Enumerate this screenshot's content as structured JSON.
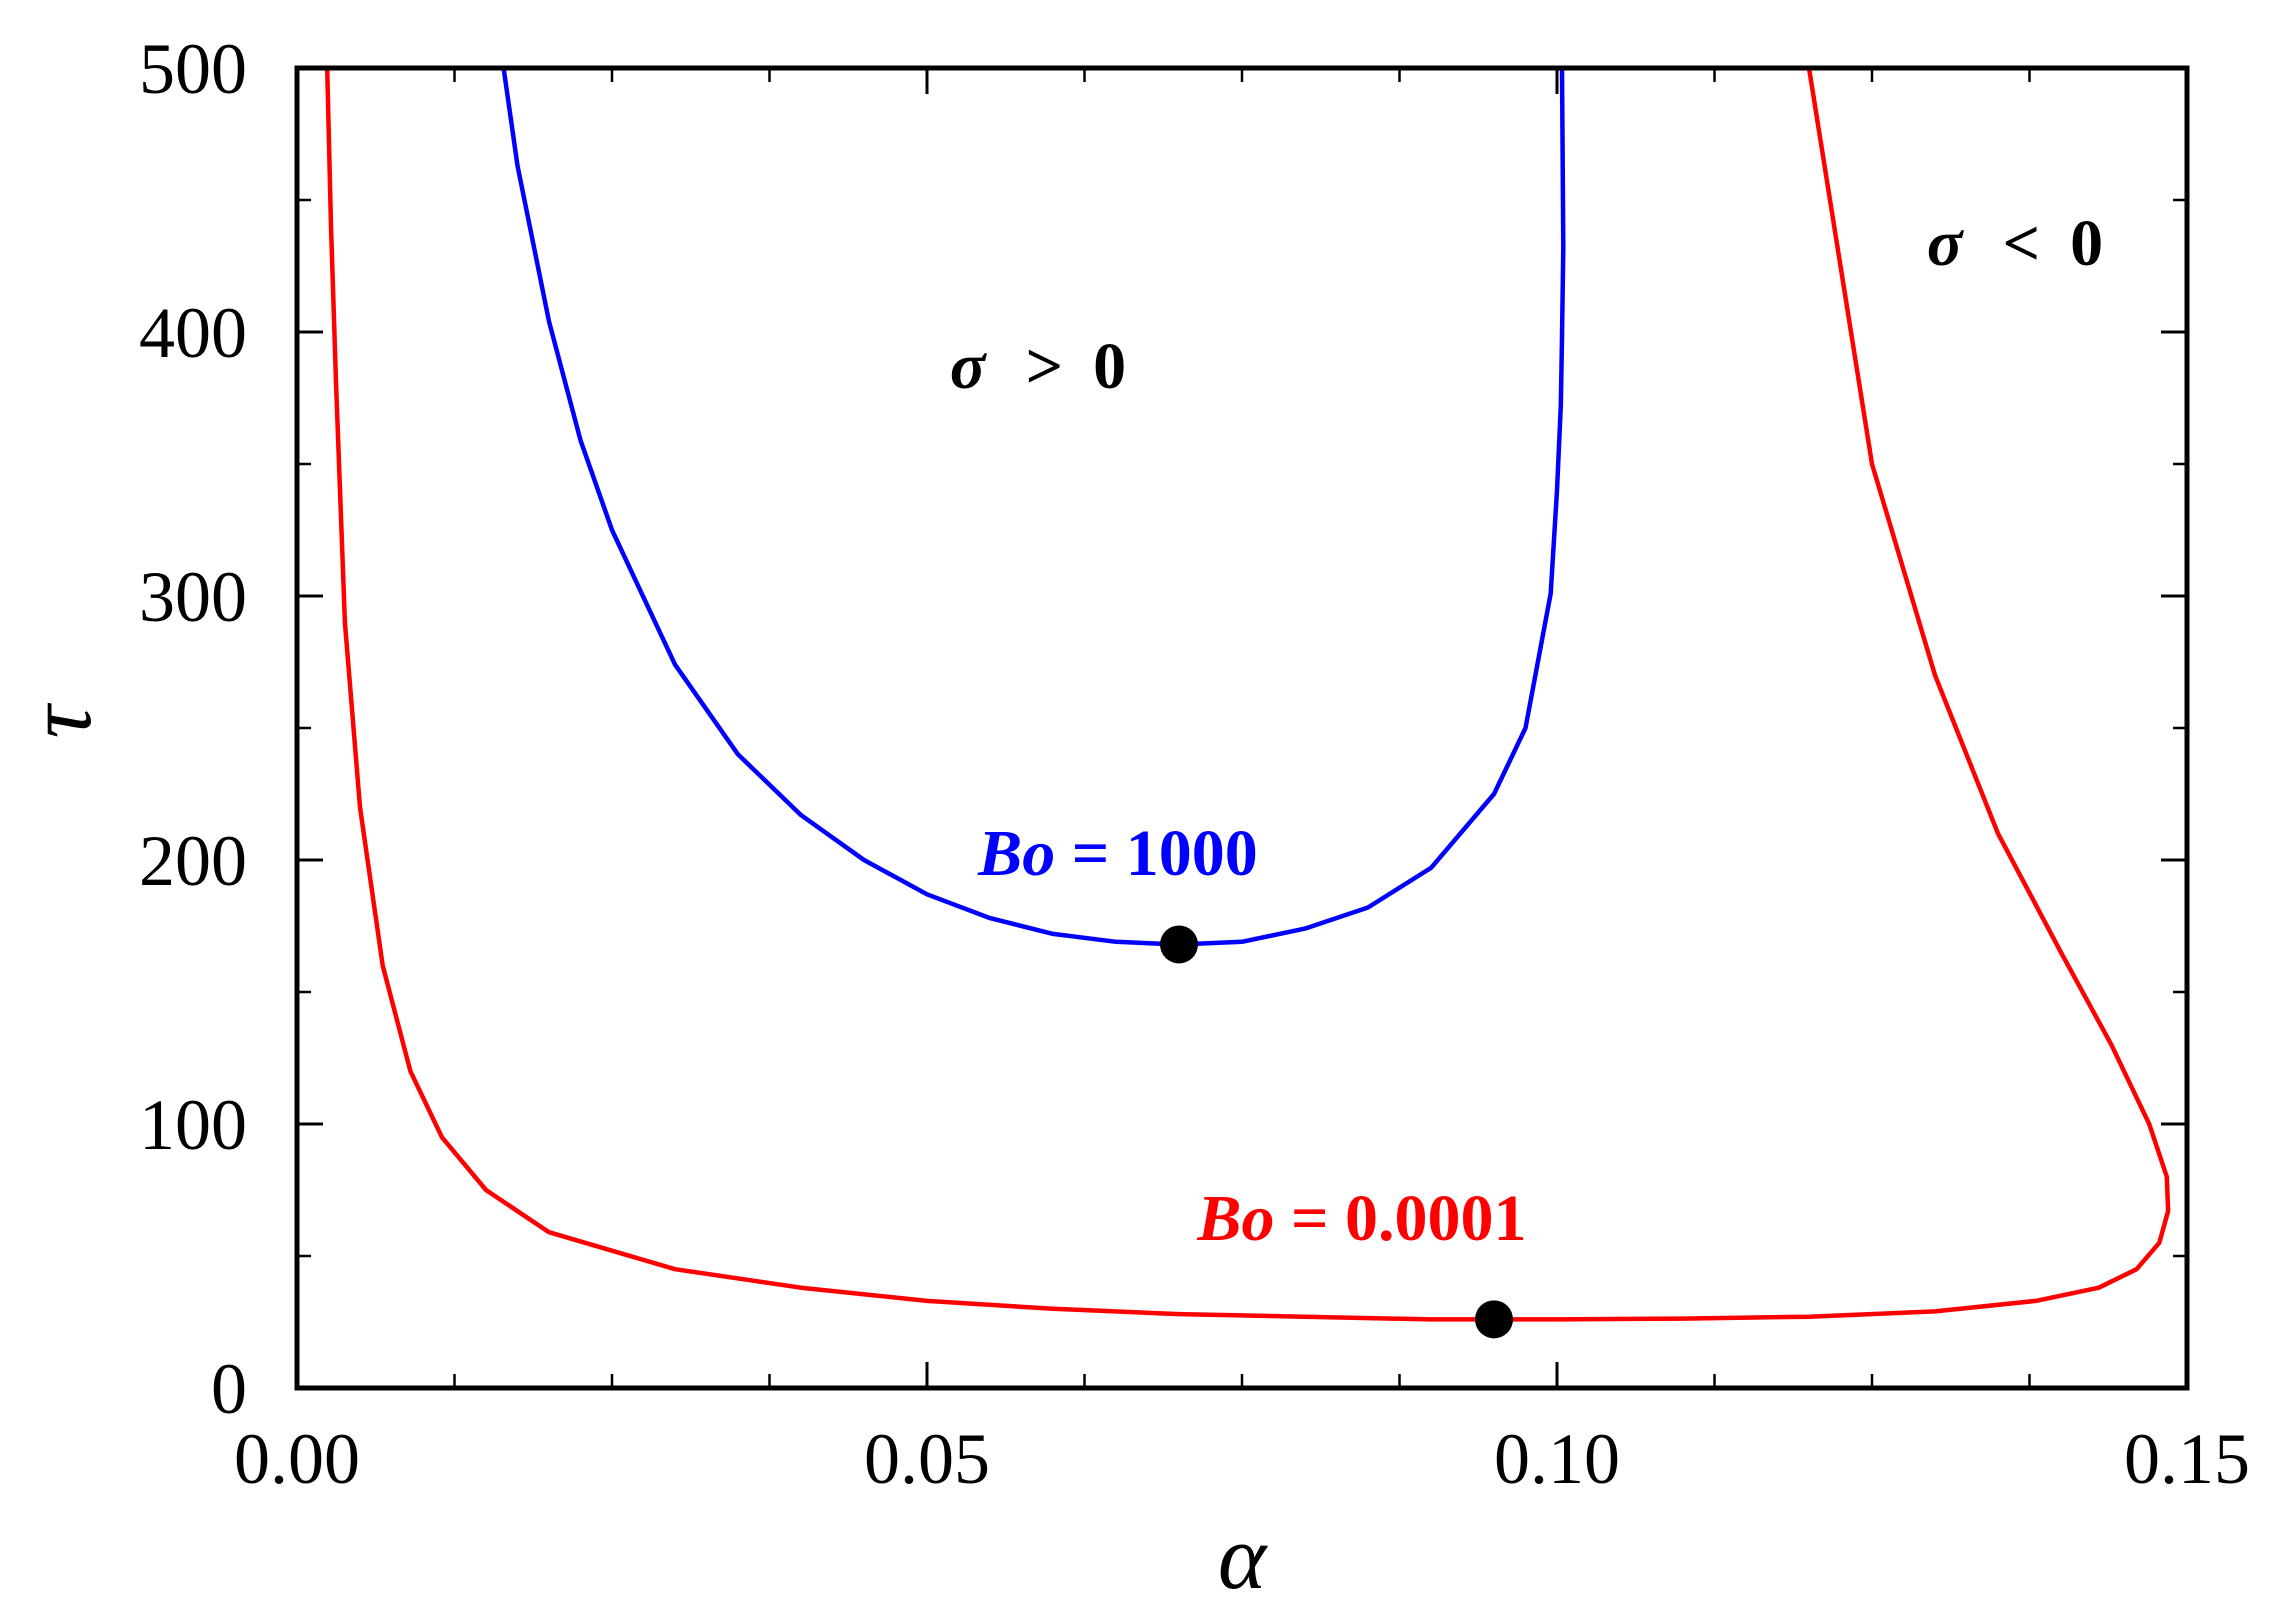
{
  "chart_data": {
    "type": "line",
    "title": "",
    "xlabel": "α",
    "ylabel": "τ",
    "xlim": [
      0,
      0.15
    ],
    "ylim": [
      0,
      500
    ],
    "x_ticks": [
      0.0,
      0.05,
      0.1,
      0.15
    ],
    "x_tick_labels": [
      "0.00",
      "0.05",
      "0.10",
      "0.15"
    ],
    "x_minor_step": 0.0125,
    "y_ticks": [
      0,
      100,
      200,
      300,
      400,
      500
    ],
    "y_tick_labels": [
      "0",
      "100",
      "200",
      "300",
      "400",
      "500"
    ],
    "y_minor_step": 50,
    "grid": false,
    "legend": "none",
    "series": [
      {
        "name": "Bo = 1000",
        "label_prefix": "Bo",
        "label_suffix": " = 1000",
        "color": "#0000ff",
        "x": [
          0.0164,
          0.0175,
          0.02,
          0.0225,
          0.025,
          0.03,
          0.035,
          0.04,
          0.045,
          0.05,
          0.055,
          0.06,
          0.065,
          0.07,
          0.075,
          0.08,
          0.085,
          0.09,
          0.095,
          0.0975,
          0.0995,
          0.1,
          0.1003,
          0.1004,
          0.1005,
          0.1004
        ],
        "y": [
          500,
          463,
          404,
          359,
          325,
          274,
          240,
          217,
          200,
          187,
          178,
          172,
          169,
          168,
          169,
          174,
          182,
          197,
          225,
          250,
          301,
          340,
          372,
          398,
          432,
          500
        ]
      },
      {
        "name": "Bo = 0.0001",
        "label_prefix": "Bo",
        "label_suffix": " = 0.0001",
        "color": "#ff0000",
        "x": [
          0.0024,
          0.0027,
          0.0031,
          0.0038,
          0.005,
          0.0068,
          0.009,
          0.0115,
          0.015,
          0.02,
          0.03,
          0.04,
          0.05,
          0.06,
          0.07,
          0.08,
          0.09,
          0.095,
          0.1,
          0.11,
          0.12,
          0.13,
          0.138,
          0.143,
          0.146,
          0.1478,
          0.1485,
          0.1484,
          0.147,
          0.144,
          0.14,
          0.135,
          0.13,
          0.125,
          0.12
        ],
        "y": [
          500,
          440,
          380,
          290,
          220,
          160,
          120,
          95,
          75,
          59,
          45,
          38,
          33,
          30,
          28,
          27,
          26,
          26,
          26,
          26.3,
          27,
          29,
          33,
          38,
          45,
          55,
          67,
          80,
          100,
          130,
          165,
          210,
          270,
          350,
          500
        ]
      }
    ],
    "markers": [
      {
        "series": "Bo = 1000",
        "x": 0.07,
        "y": 168
      },
      {
        "series": "Bo = 0.0001",
        "x": 0.095,
        "y": 26
      }
    ],
    "annotations": [
      {
        "id": "sigma-positive",
        "symbol": "σ",
        "relation": ">",
        "value": "0"
      },
      {
        "id": "sigma-negative",
        "symbol": "σ",
        "relation": "<",
        "value": "0"
      }
    ]
  }
}
